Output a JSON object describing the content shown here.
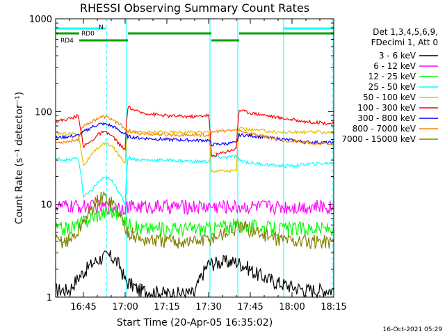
{
  "footer": {
    "timestamp": "16-Oct-2021 05:29"
  },
  "colors": {
    "background": "#ffffff",
    "axis": "#000000",
    "attenuator_state_bar": "#00a000",
    "flag_bar": "#00ffff",
    "flag_line": "#00ffff"
  },
  "chart_data": {
    "type": "line",
    "title": "RHESSI Observing Summary Count Rates",
    "xlabel": "Start Time (20-Apr-05 16:35:02)",
    "ylabel": "Count Rate (s⁻¹ detector⁻¹)",
    "x_units": "minutes after 16:35:02",
    "xlim": [
      0,
      100
    ],
    "x_ticks": [
      {
        "label": "16:45",
        "value": 10
      },
      {
        "label": "17:00",
        "value": 25
      },
      {
        "label": "17:15",
        "value": 40
      },
      {
        "label": "17:30",
        "value": 55
      },
      {
        "label": "17:45",
        "value": 70
      },
      {
        "label": "18:00",
        "value": 85
      },
      {
        "label": "18:15",
        "value": 100
      }
    ],
    "y_scale": "log",
    "ylim": [
      1,
      1000
    ],
    "y_ticks": [
      {
        "label": "1",
        "value": 1
      },
      {
        "label": "10",
        "value": 10
      },
      {
        "label": "100",
        "value": 100
      },
      {
        "label": "1000",
        "value": 1000
      }
    ],
    "legend_header": [
      "Det 1,3,4,5,6,9,",
      "FDecimi 1, Att 0"
    ],
    "legend_position": "right",
    "series": [
      {
        "name": "3 - 6 keV",
        "color": "#000000",
        "x": [
          0,
          5,
          8,
          11,
          14,
          17,
          19,
          21,
          23,
          25,
          30,
          40,
          50,
          55,
          60,
          65,
          68,
          72,
          78,
          85,
          90,
          95,
          100
        ],
        "y": [
          1.2,
          1.2,
          1.6,
          2.0,
          2.4,
          2.7,
          2.8,
          2.6,
          2.2,
          1.5,
          1.2,
          1.1,
          1.1,
          2.3,
          2.4,
          2.4,
          2.2,
          1.8,
          1.5,
          1.3,
          1.2,
          1.2,
          1.2
        ]
      },
      {
        "name": "6 - 12 keV",
        "color": "#ff00ff",
        "x": [
          0,
          10,
          20,
          30,
          40,
          50,
          55,
          60,
          70,
          80,
          90,
          100
        ],
        "y": [
          9.5,
          9.5,
          9.5,
          9.5,
          9.5,
          9.5,
          9.5,
          9.5,
          9.5,
          9.5,
          9.5,
          9.5
        ]
      },
      {
        "name": "12 - 25 keV",
        "color": "#00ff00",
        "x": [
          0,
          5,
          10,
          15,
          19,
          21,
          25,
          30,
          40,
          50,
          55,
          60,
          65,
          68,
          72,
          78,
          85,
          90,
          100
        ],
        "y": [
          5.5,
          5.5,
          6.5,
          7.8,
          8.5,
          8.5,
          6.5,
          5.5,
          5.5,
          5.5,
          5.5,
          5.8,
          6.0,
          6.0,
          5.8,
          5.5,
          5.5,
          5.5,
          5.5
        ]
      },
      {
        "name": "25 - 50 keV",
        "color": "#00ffff",
        "x": [
          0,
          5,
          8,
          10,
          13,
          15,
          17,
          19,
          21,
          23,
          25,
          26,
          30,
          40,
          50,
          55,
          56,
          60,
          65,
          66,
          70,
          75,
          80,
          85,
          90,
          100
        ],
        "y": [
          31,
          30,
          32,
          12,
          14,
          17,
          19,
          19,
          17,
          13,
          10,
          32,
          30,
          30,
          29,
          29,
          33,
          32,
          33,
          30,
          28,
          27,
          26,
          26,
          27,
          28
        ]
      },
      {
        "name": "50 - 100 keV",
        "color": "#e0c000",
        "x": [
          0,
          5,
          8,
          10,
          13,
          15,
          17,
          19,
          21,
          23,
          25,
          26,
          30,
          40,
          50,
          55,
          56,
          60,
          65,
          66,
          70,
          75,
          80,
          85,
          90,
          100
        ],
        "y": [
          58,
          58,
          58,
          26,
          34,
          40,
          45,
          45,
          40,
          33,
          28,
          62,
          60,
          60,
          60,
          60,
          23,
          23,
          23,
          65,
          64,
          62,
          60,
          60,
          60,
          60
        ]
      },
      {
        "name": "100 - 300 keV",
        "color": "#ff0000",
        "x": [
          0,
          5,
          8,
          10,
          13,
          15,
          17,
          19,
          21,
          23,
          25,
          26,
          30,
          40,
          50,
          55,
          56,
          60,
          65,
          66,
          70,
          75,
          80,
          85,
          90,
          100
        ],
        "y": [
          78,
          84,
          90,
          42,
          48,
          56,
          60,
          58,
          52,
          44,
          38,
          112,
          98,
          90,
          88,
          92,
          33,
          36,
          40,
          104,
          97,
          92,
          86,
          82,
          78,
          74
        ]
      },
      {
        "name": "300 - 800 keV",
        "color": "#0000ff",
        "x": [
          0,
          5,
          8,
          10,
          13,
          15,
          17,
          19,
          21,
          23,
          25,
          26,
          30,
          40,
          50,
          55,
          56,
          60,
          65,
          66,
          70,
          75,
          80,
          85,
          90,
          100
        ],
        "y": [
          52,
          54,
          55,
          60,
          68,
          72,
          74,
          72,
          68,
          62,
          57,
          54,
          52,
          50,
          49,
          49,
          44,
          45,
          46,
          56,
          55,
          53,
          51,
          49,
          47,
          46
        ]
      },
      {
        "name": "800 - 7000 keV",
        "color": "#ff8000",
        "x": [
          0,
          5,
          8,
          10,
          13,
          15,
          17,
          19,
          21,
          23,
          25,
          26,
          30,
          40,
          50,
          55,
          56,
          60,
          65,
          66,
          70,
          75,
          80,
          85,
          90,
          100
        ],
        "y": [
          46,
          48,
          50,
          70,
          78,
          84,
          88,
          86,
          80,
          73,
          66,
          62,
          58,
          56,
          56,
          56,
          60,
          62,
          63,
          62,
          58,
          54,
          50,
          48,
          46,
          44
        ]
      },
      {
        "name": "7000 - 15000 keV",
        "color": "#808000",
        "x": [
          0,
          5,
          8,
          10,
          13,
          15,
          17,
          19,
          21,
          23,
          25,
          30,
          40,
          50,
          55,
          60,
          65,
          68,
          72,
          78,
          85,
          90,
          100
        ],
        "y": [
          4.0,
          4.1,
          5.0,
          6.5,
          9.0,
          11.0,
          12.0,
          11.5,
          10.0,
          8.0,
          5.5,
          4.2,
          4.0,
          4.0,
          4.2,
          4.8,
          5.5,
          5.6,
          5.0,
          4.4,
          4.1,
          4.0,
          4.0
        ]
      }
    ],
    "state_bars": [
      {
        "label": "RD0",
        "color": "#00a000",
        "row": 2,
        "segments": [
          [
            0,
            8.5
          ]
        ]
      },
      {
        "label": "RD4",
        "color": "#00a000",
        "row": 3,
        "segments": [
          [
            8.5,
            26
          ]
        ]
      },
      {
        "label": "",
        "color": "#00a000",
        "row": 2,
        "segments": [
          [
            26,
            56
          ],
          [
            66,
            100
          ]
        ]
      },
      {
        "label": "",
        "color": "#00a000",
        "row": 3,
        "segments": [
          [
            56,
            66
          ]
        ]
      },
      {
        "label": "N",
        "color": "#00ffff",
        "row": 1,
        "segments": [
          [
            0,
            18
          ],
          [
            82,
            100
          ]
        ]
      }
    ],
    "vertical_lines": [
      {
        "x": 0,
        "style": "solid"
      },
      {
        "x": 25.5,
        "style": "solid"
      },
      {
        "x": 55.5,
        "style": "solid"
      },
      {
        "x": 65.5,
        "style": "solid"
      },
      {
        "x": 82,
        "style": "solid"
      },
      {
        "x": 18.3,
        "style": "dashed"
      },
      {
        "x": 99.5,
        "style": "dashed"
      }
    ],
    "grid": false
  }
}
